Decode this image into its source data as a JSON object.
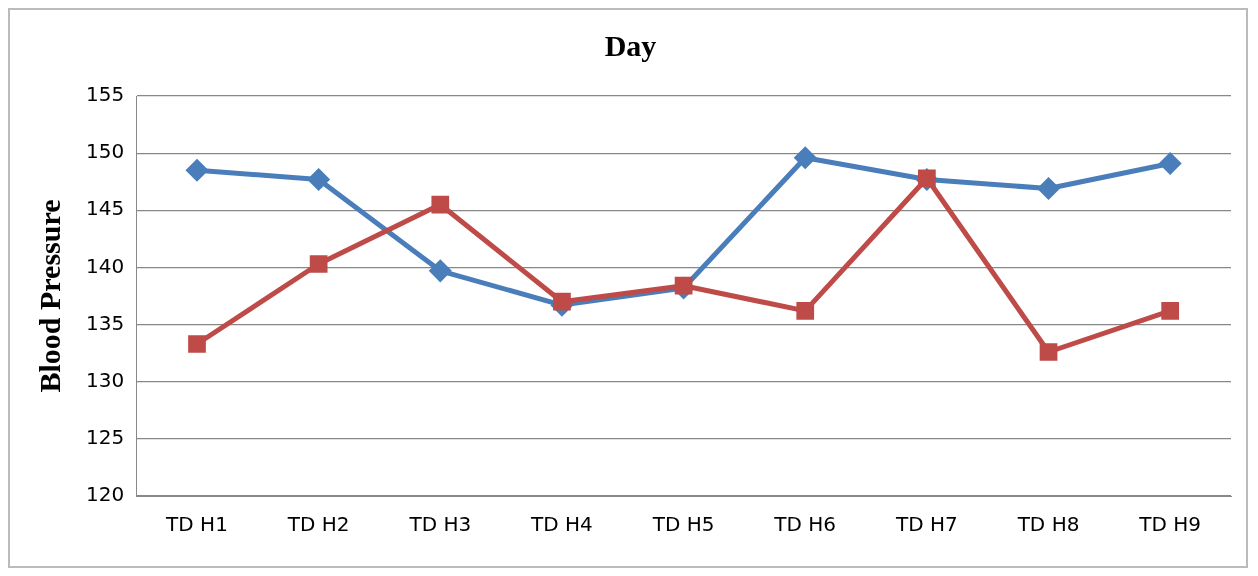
{
  "chart_data": {
    "type": "line",
    "title": "Day",
    "ylabel": "Blood Pressure",
    "categories": [
      "TD H1",
      "TD H2",
      "TD H3",
      "TD H4",
      "TD H5",
      "TD H6",
      "TD H7",
      "TD H8",
      "TD H9"
    ],
    "series": [
      {
        "color": "#4a7ebb",
        "marker": "diamond",
        "values": [
          148.5,
          147.7,
          139.7,
          136.7,
          138.2,
          149.6,
          147.7,
          146.9,
          149.1
        ]
      },
      {
        "color": "#be4b48",
        "marker": "square",
        "values": [
          133.3,
          140.3,
          145.5,
          137.0,
          138.4,
          136.2,
          147.8,
          132.6,
          136.2
        ]
      }
    ],
    "ylim": [
      120,
      155
    ],
    "yticks": [
      120,
      125,
      130,
      135,
      140,
      145,
      150,
      155
    ],
    "grid": "y",
    "legend": false
  }
}
